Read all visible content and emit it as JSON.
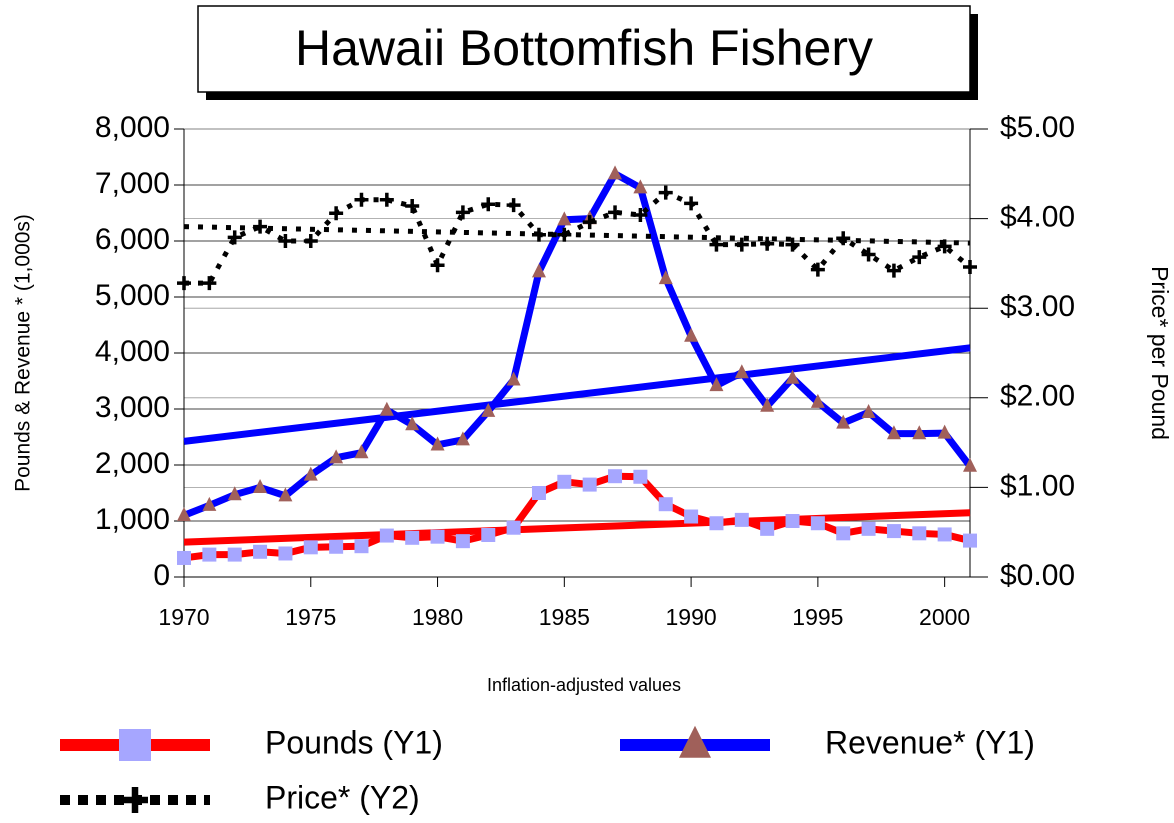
{
  "chart_data": {
    "type": "line",
    "title": "Hawaii Bottomfish Fishery",
    "subtitle": "Inflation-adjusted values",
    "y_label": "Pounds & Revenue * (1,000s)",
    "y2_label": "Price* per Pound",
    "x": [
      1970,
      1971,
      1972,
      1973,
      1974,
      1975,
      1976,
      1977,
      1978,
      1979,
      1980,
      1981,
      1982,
      1983,
      1984,
      1985,
      1986,
      1987,
      1988,
      1989,
      1990,
      1991,
      1992,
      1993,
      1994,
      1995,
      1996,
      1997,
      1998,
      1999,
      2000,
      2001
    ],
    "xlim": [
      1970,
      2001
    ],
    "xticks": [
      1970,
      1975,
      1980,
      1985,
      1990,
      1995,
      2000
    ],
    "ylim": [
      0,
      8000
    ],
    "yticks": [
      0,
      {
        "value": 1000,
        "label": "1,000"
      },
      {
        "value": 2000,
        "label": "2,000"
      },
      {
        "value": 3000,
        "label": "3,000"
      },
      {
        "value": 4000,
        "label": "4,000"
      },
      {
        "value": 5000,
        "label": "5,000"
      },
      {
        "value": 6000,
        "label": "6,000"
      },
      {
        "value": 7000,
        "label": "7,000"
      },
      {
        "value": 8000,
        "label": "8,000"
      }
    ],
    "y2lim": [
      0,
      5
    ],
    "y2ticks": [
      {
        "value": 0,
        "label": "$0.00"
      },
      {
        "value": 1,
        "label": "$1.00"
      },
      {
        "value": 2,
        "label": "$2.00"
      },
      {
        "value": 3,
        "label": "$3.00"
      },
      {
        "value": 4,
        "label": "$4.00"
      },
      {
        "value": 5,
        "label": "$5.00"
      }
    ],
    "grid": true,
    "trendline": true,
    "legend": "bottom",
    "series": [
      {
        "name": "Pounds (Y1)",
        "color": "#ff0000",
        "marker": "square",
        "marker_color": "#a6a6ff",
        "values": [
          340,
          400,
          400,
          450,
          420,
          530,
          540,
          550,
          740,
          700,
          720,
          640,
          750,
          880,
          1500,
          1700,
          1650,
          1800,
          1790,
          1300,
          1080,
          960,
          1020,
          860,
          1000,
          960,
          780,
          860,
          820,
          780,
          760,
          650
        ]
      },
      {
        "name": "Revenue* (Y1)",
        "color": "#0000ff",
        "marker": "triangle",
        "marker_color": "#a0605a",
        "values": [
          1100,
          1280,
          1470,
          1600,
          1450,
          1820,
          2130,
          2220,
          2980,
          2720,
          2360,
          2450,
          2960,
          3520,
          5450,
          6380,
          6400,
          7200,
          6950,
          5330,
          4300,
          3420,
          3650,
          3050,
          3550,
          3120,
          2750,
          2940,
          2560,
          2560,
          2570,
          1980
        ]
      },
      {
        "name": "Price* (Y2)",
        "color": "#000000",
        "marker": "plus",
        "marker_color": "#000000",
        "dash": "dotted",
        "axis": "y2",
        "values": [
          3.28,
          3.28,
          3.79,
          3.91,
          3.75,
          3.75,
          4.06,
          4.21,
          4.21,
          4.14,
          3.48,
          4.07,
          4.16,
          4.15,
          3.82,
          3.82,
          3.96,
          4.07,
          4.04,
          4.29,
          4.17,
          3.71,
          3.71,
          3.72,
          3.71,
          3.43,
          3.78,
          3.6,
          3.42,
          3.57,
          3.69,
          3.46
        ]
      }
    ]
  }
}
